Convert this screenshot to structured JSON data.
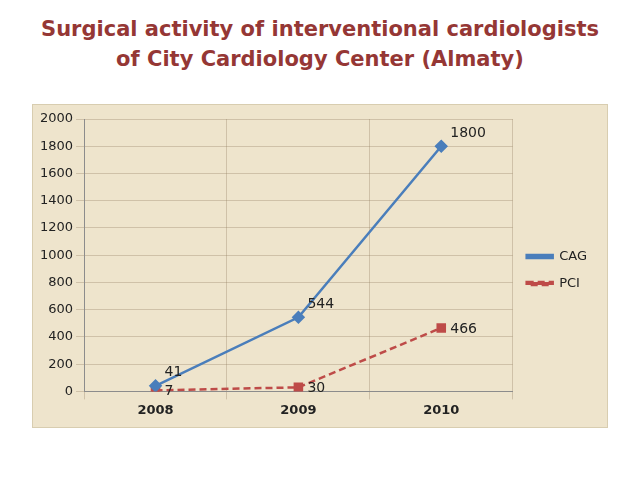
{
  "chart_data": {
    "type": "line",
    "title": "Surgical activity of interventional cardiologists of City Cardiology Center (Almaty)",
    "categories": [
      "2008",
      "2009",
      "2010"
    ],
    "series": [
      {
        "name": "CAG",
        "color": "#4a7ebb",
        "values": [
          41,
          544,
          1800
        ],
        "marker": "diamond",
        "line_style": "solid"
      },
      {
        "name": "PCI",
        "color": "#be4b48",
        "values": [
          7,
          30,
          466
        ],
        "marker": "square",
        "line_style": "dashed"
      }
    ],
    "ylim": [
      0,
      2000
    ],
    "yticks": [
      0,
      200,
      400,
      600,
      800,
      1000,
      1200,
      1400,
      1600,
      1800,
      2000
    ],
    "grid": true,
    "legend": "right",
    "data_labels": true
  }
}
